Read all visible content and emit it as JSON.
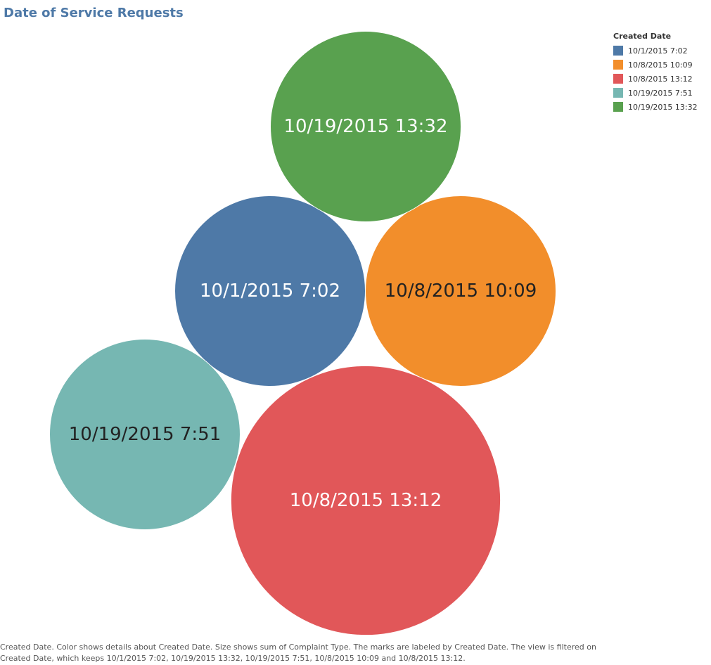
{
  "chart_data": {
    "type": "bubble",
    "title": "Date of Service Requests",
    "legend": {
      "title": "Created Date",
      "placement": "top-right"
    },
    "size_measure": "Sum of Complaint Type",
    "series": [
      {
        "name": "10/1/2015 7:02",
        "label": "10/1/2015 7:02",
        "value": 3,
        "color": "#4e79a7",
        "label_color": "#ffffff"
      },
      {
        "name": "10/8/2015 10:09",
        "label": "10/8/2015 10:09",
        "value": 3,
        "color": "#f28e2b",
        "label_color": "#222222"
      },
      {
        "name": "10/8/2015 13:12",
        "label": "10/8/2015 13:12",
        "value": 6,
        "color": "#e15759",
        "label_color": "#ffffff"
      },
      {
        "name": "10/19/2015 7:51",
        "label": "10/19/2015 7:51",
        "value": 3,
        "color": "#76b7b2",
        "label_color": "#222222"
      },
      {
        "name": "10/19/2015 13:32",
        "label": "10/19/2015 13:32",
        "value": 3,
        "color": "#59a14f",
        "label_color": "#ffffff"
      }
    ]
  },
  "caption": {
    "text": "Created Date.  Color shows details about Created Date.  Size shows sum of Complaint Type.  The marks are labeled by Created Date. The view is filtered on Created Date, which keeps 10/1/2015 7:02, 10/19/2015 13:32, 10/19/2015 7:51, 10/8/2015 10:09 and 10/8/2015 13:12."
  }
}
